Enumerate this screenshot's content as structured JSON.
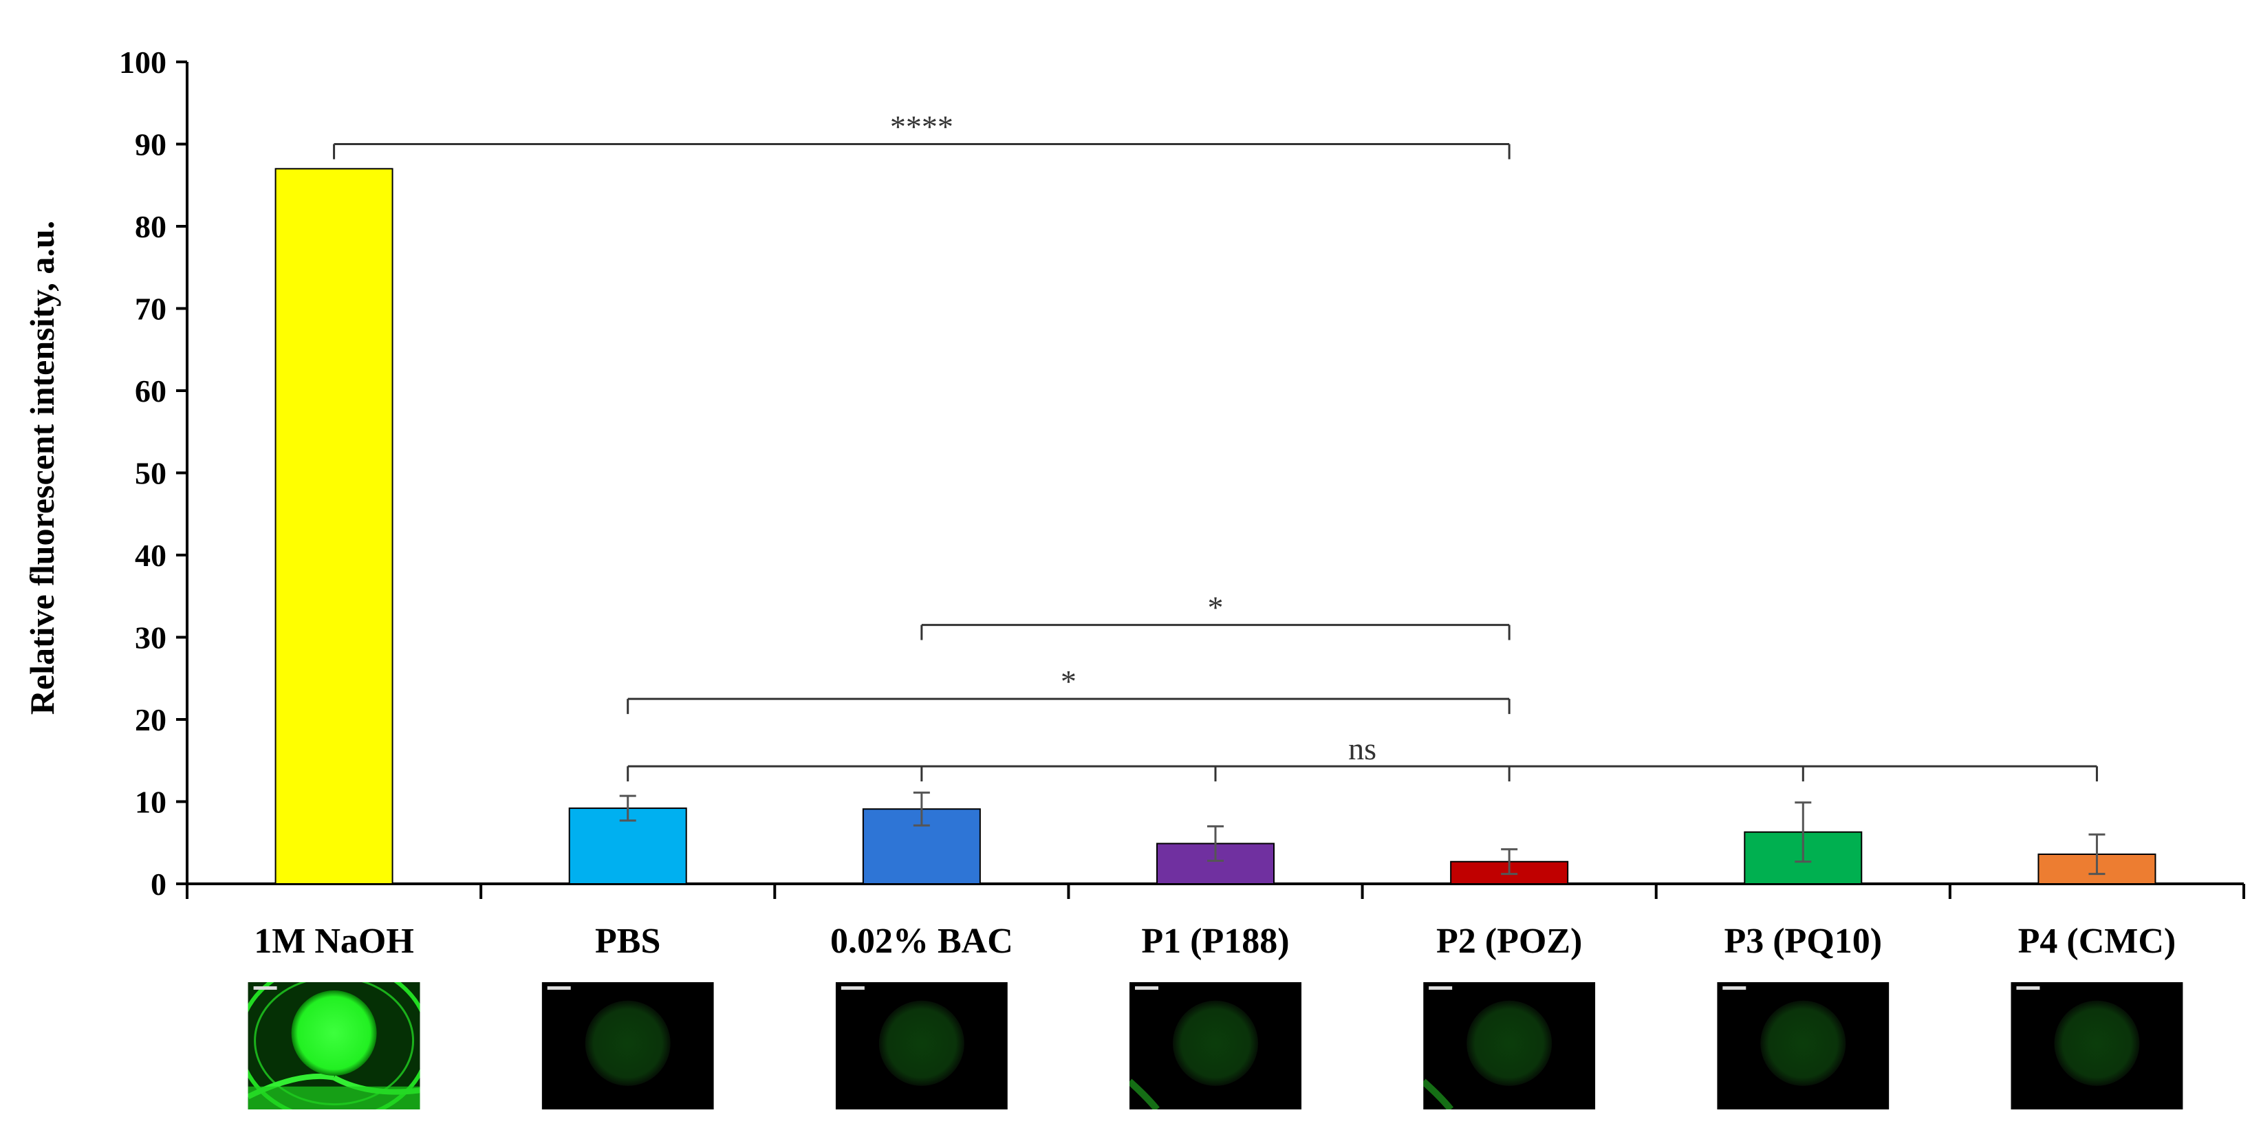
{
  "chart_data": {
    "type": "bar",
    "ylabel": "Relative fluorescent intensity, a.u.",
    "xlabel": "",
    "ylim": [
      0,
      100
    ],
    "yticks": [
      0,
      10,
      20,
      30,
      40,
      50,
      60,
      70,
      80,
      90,
      100
    ],
    "categories": [
      "1M NaOH",
      "PBS",
      "0.02% BAC",
      "P1 (P188)",
      "P2 (POZ)",
      "P3 (PQ10)",
      "P4 (CMC)"
    ],
    "values": [
      87,
      9.2,
      9.1,
      4.9,
      2.7,
      6.3,
      3.6
    ],
    "errors": [
      0,
      1.5,
      2.0,
      2.1,
      1.5,
      3.6,
      2.4
    ],
    "colors": [
      "#ffff00",
      "#00b0f0",
      "#2e75d6",
      "#7030a0",
      "#c00000",
      "#00b050",
      "#ed7d31"
    ],
    "grid": false,
    "legend": "none",
    "significance": [
      {
        "from": 0,
        "to": 4,
        "y": 90,
        "label": "****"
      },
      {
        "from": 2,
        "to": 4,
        "y": 31.5,
        "label": "*"
      },
      {
        "from": 1,
        "to": 4,
        "y": 22.5,
        "label": "*"
      },
      {
        "from": 1,
        "to": 6,
        "y": 14.3,
        "label": "ns",
        "ticks": [
          1,
          2,
          3,
          4,
          5,
          6
        ]
      }
    ],
    "thumbnails": [
      {
        "category": "1M NaOH",
        "pattern": "bright-disc"
      },
      {
        "category": "PBS",
        "pattern": "faint-disc"
      },
      {
        "category": "0.02% BAC",
        "pattern": "faint-disc"
      },
      {
        "category": "P1 (P188)",
        "pattern": "faint-disc-edge"
      },
      {
        "category": "P2 (POZ)",
        "pattern": "faint-disc-edge"
      },
      {
        "category": "P3 (PQ10)",
        "pattern": "faint-disc"
      },
      {
        "category": "P4 (CMC)",
        "pattern": "faint-disc"
      }
    ]
  }
}
